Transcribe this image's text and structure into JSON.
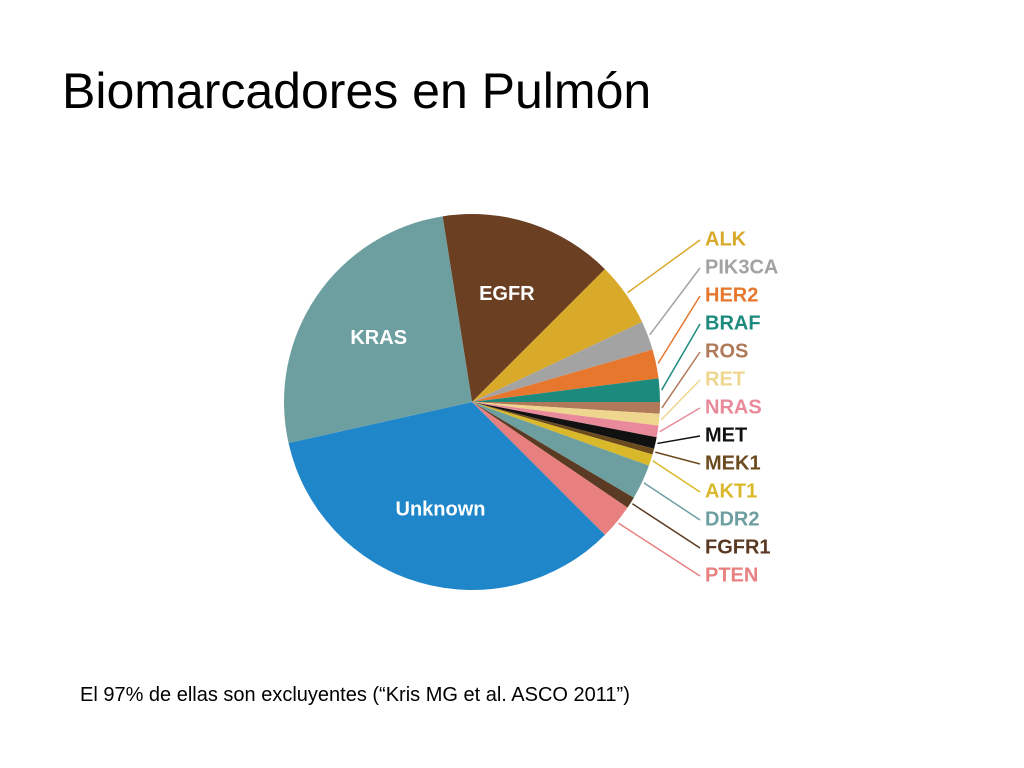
{
  "title": "Biomarcadores en Pulmón",
  "note": "El 97% de ellas son excluyentes  (“Kris MG et al. ASCO 2011”)",
  "chart_data": {
    "type": "pie",
    "categories": [
      "EGFR",
      "ALK",
      "PIK3CA",
      "HER2",
      "BRAF",
      "ROS",
      "RET",
      "NRAS",
      "MET",
      "MEK1",
      "AKT1",
      "DDR2",
      "FGFR1",
      "PTEN",
      "Unknown",
      "KRAS"
    ],
    "values": [
      15,
      5.5,
      2.5,
      2.5,
      2,
      1,
      1,
      1,
      1,
      0.5,
      1,
      3,
      1,
      3,
      34,
      26
    ],
    "colors": [
      "#6b3f22",
      "#d9a92a",
      "#a3a3a3",
      "#e8772e",
      "#1d8a7e",
      "#b07a5a",
      "#efd68e",
      "#e88a9a",
      "#111111",
      "#6b4a1e",
      "#d9b82a",
      "#6e9fa0",
      "#5a3a22",
      "#e88080",
      "#1f86c9",
      "#6e9fa0"
    ]
  }
}
